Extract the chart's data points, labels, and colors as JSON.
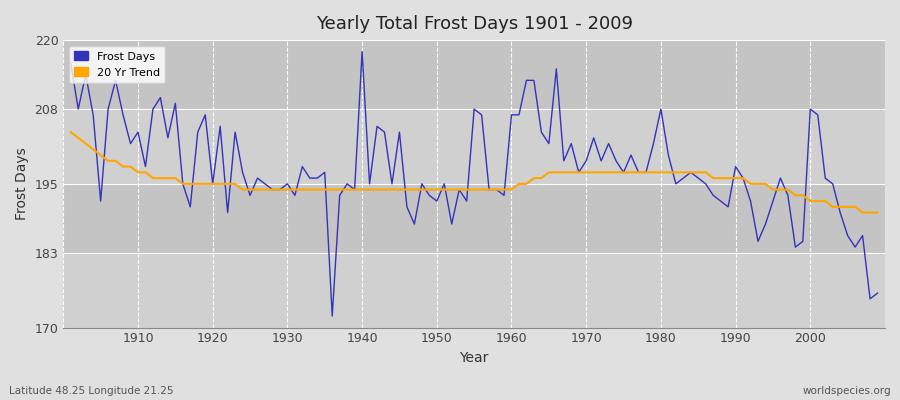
{
  "title": "Yearly Total Frost Days 1901 - 2009",
  "xlabel": "Year",
  "ylabel": "Frost Days",
  "subtitle": "Latitude 48.25 Longitude 21.25",
  "watermark": "worldspecies.org",
  "line_color": "#3333bb",
  "trend_color": "#FFA500",
  "bg_color": "#e0e0e0",
  "plot_bg_light": "#d8d8d8",
  "plot_bg_dark": "#c8c8c8",
  "ylim": [
    170,
    220
  ],
  "yticks": [
    170,
    183,
    195,
    208,
    220
  ],
  "years": [
    1901,
    1902,
    1903,
    1904,
    1905,
    1906,
    1907,
    1908,
    1909,
    1910,
    1911,
    1912,
    1913,
    1914,
    1915,
    1916,
    1917,
    1918,
    1919,
    1920,
    1921,
    1922,
    1923,
    1924,
    1925,
    1926,
    1927,
    1928,
    1929,
    1930,
    1931,
    1932,
    1933,
    1934,
    1935,
    1936,
    1937,
    1938,
    1939,
    1940,
    1941,
    1942,
    1943,
    1944,
    1945,
    1946,
    1947,
    1948,
    1949,
    1950,
    1951,
    1952,
    1953,
    1954,
    1955,
    1956,
    1957,
    1958,
    1959,
    1960,
    1961,
    1962,
    1963,
    1964,
    1965,
    1966,
    1967,
    1968,
    1969,
    1970,
    1971,
    1972,
    1973,
    1974,
    1975,
    1976,
    1977,
    1978,
    1979,
    1980,
    1981,
    1982,
    1983,
    1984,
    1985,
    1986,
    1987,
    1988,
    1989,
    1990,
    1991,
    1992,
    1993,
    1994,
    1995,
    1996,
    1997,
    1998,
    1999,
    2000,
    2001,
    2002,
    2003,
    2004,
    2005,
    2006,
    2007,
    2008,
    2009
  ],
  "frost_days": [
    216,
    208,
    214,
    207,
    192,
    208,
    213,
    207,
    202,
    204,
    198,
    208,
    210,
    203,
    209,
    195,
    191,
    204,
    207,
    195,
    205,
    190,
    204,
    197,
    193,
    196,
    195,
    194,
    194,
    195,
    193,
    198,
    196,
    196,
    197,
    172,
    193,
    195,
    194,
    218,
    195,
    205,
    204,
    195,
    204,
    191,
    188,
    195,
    193,
    192,
    195,
    188,
    194,
    192,
    208,
    207,
    194,
    194,
    193,
    207,
    207,
    213,
    213,
    204,
    202,
    215,
    199,
    202,
    197,
    199,
    203,
    199,
    202,
    199,
    197,
    200,
    197,
    197,
    202,
    208,
    200,
    195,
    196,
    197,
    196,
    195,
    193,
    192,
    191,
    198,
    196,
    192,
    185,
    188,
    192,
    196,
    193,
    184,
    185,
    208,
    207,
    196,
    195,
    190,
    186,
    184,
    186,
    175,
    176
  ],
  "trend_values": [
    204,
    203,
    202,
    201,
    200,
    199,
    199,
    198,
    198,
    197,
    197,
    196,
    196,
    196,
    196,
    195,
    195,
    195,
    195,
    195,
    195,
    195,
    195,
    194,
    194,
    194,
    194,
    194,
    194,
    194,
    194,
    194,
    194,
    194,
    194,
    194,
    194,
    194,
    194,
    194,
    194,
    194,
    194,
    194,
    194,
    194,
    194,
    194,
    194,
    194,
    194,
    194,
    194,
    194,
    194,
    194,
    194,
    194,
    194,
    194,
    195,
    195,
    196,
    196,
    197,
    197,
    197,
    197,
    197,
    197,
    197,
    197,
    197,
    197,
    197,
    197,
    197,
    197,
    197,
    197,
    197,
    197,
    197,
    197,
    197,
    197,
    196,
    196,
    196,
    196,
    196,
    195,
    195,
    195,
    194,
    194,
    194,
    193,
    193,
    192,
    192,
    192,
    191,
    191,
    191,
    191,
    190,
    190,
    190
  ]
}
